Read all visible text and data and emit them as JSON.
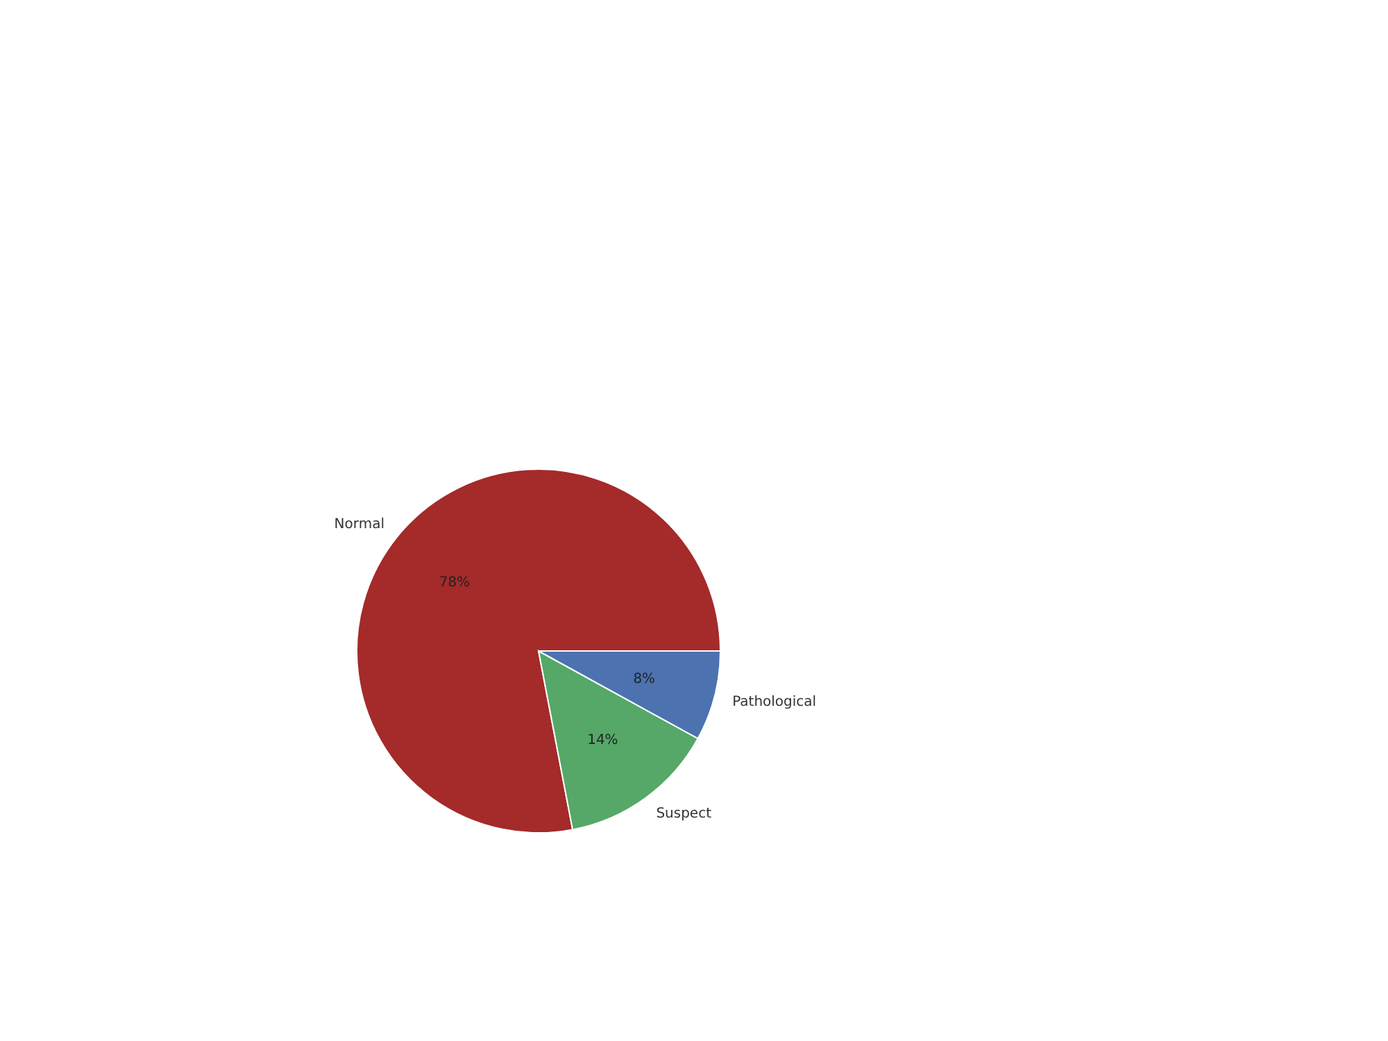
{
  "chart_data": {
    "type": "pie",
    "categories": [
      "Normal",
      "Suspect",
      "Pathological"
    ],
    "values": [
      78,
      14,
      8
    ],
    "colors": [
      "#a52a2a",
      "#55a868",
      "#4c72b0"
    ],
    "value_labels": [
      "78%",
      "14%",
      "8%"
    ]
  }
}
